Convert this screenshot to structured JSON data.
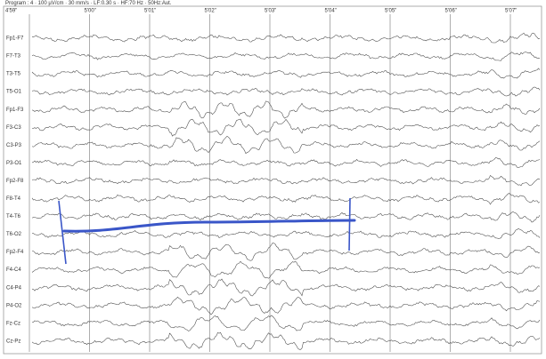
{
  "header": "Program : 4 · 100 µV/cm · 30 mm/s · LF:0.30 s · HF:70 Hz · 50Hz:Aut.",
  "time_labels": [
    "4'59\"",
    "5'00\"",
    "5'01\"",
    "5'02\"",
    "5'03\"",
    "5'04\"",
    "5'05\"",
    "5'06\"",
    "5'07\""
  ],
  "channels": [
    "Fp1-F7",
    "F7-T3",
    "T3-T5",
    "T5-O1",
    "Fp1-F3",
    "F3-C3",
    "C3-P3",
    "P3-O1",
    "Fp2-F8",
    "F8-T4",
    "T4-T6",
    "T6-O2",
    "Fp2-F4",
    "F4-C4",
    "C4-P4",
    "P4-O2",
    "Fz-Cz",
    "Cz-Pz"
  ]
}
